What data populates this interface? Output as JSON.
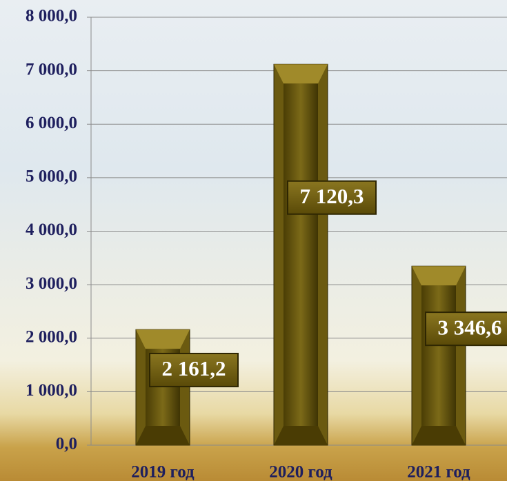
{
  "chart_data": {
    "type": "bar",
    "categories": [
      "2019 год",
      "2020 год",
      "2021 год"
    ],
    "values": [
      2161.2,
      7120.3,
      3346.6
    ],
    "value_labels": [
      "2 161,2",
      "7 120,3",
      "3 346,6"
    ],
    "color": "#6b5a10",
    "ylim": [
      0,
      8000
    ],
    "yticks": [
      {
        "value": 0,
        "label": "0,0"
      },
      {
        "value": 1000,
        "label": "1 000,0"
      },
      {
        "value": 2000,
        "label": "2 000,0"
      },
      {
        "value": 3000,
        "label": "3 000,0"
      },
      {
        "value": 4000,
        "label": "4 000,0"
      },
      {
        "value": 5000,
        "label": "5 000,0"
      },
      {
        "value": 6000,
        "label": "6 000,0"
      },
      {
        "value": 7000,
        "label": "7 000,0"
      },
      {
        "value": 8000,
        "label": "8 000,0"
      }
    ],
    "grid": true
  }
}
